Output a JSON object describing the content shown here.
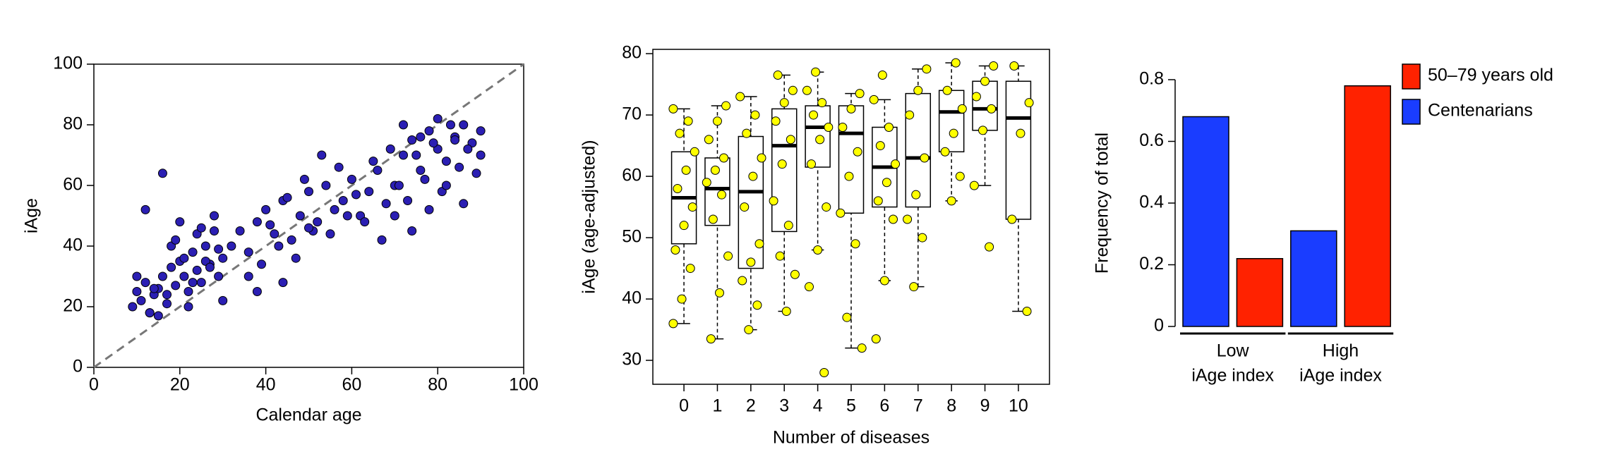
{
  "chart_data": [
    {
      "type": "scatter",
      "xlabel": "Calendar age",
      "ylabel": "iAge",
      "xlim": [
        0,
        100
      ],
      "ylim": [
        0,
        100
      ],
      "xticks": [
        0,
        20,
        40,
        60,
        80,
        100
      ],
      "yticks": [
        0,
        20,
        40,
        60,
        80,
        100
      ],
      "color": "#2b1fb3",
      "reference_line": true,
      "x": [
        9,
        10,
        11,
        12,
        13,
        14,
        15,
        16,
        17,
        18,
        19,
        20,
        21,
        22,
        23,
        24,
        25,
        26,
        27,
        28,
        29,
        30,
        12,
        14,
        16,
        18,
        20,
        22,
        24,
        26,
        28,
        30,
        10,
        13,
        17,
        19,
        21,
        23,
        25,
        27,
        29,
        15,
        32,
        34,
        36,
        38,
        40,
        42,
        44,
        46,
        48,
        50,
        52,
        54,
        56,
        58,
        60,
        62,
        64,
        66,
        68,
        70,
        36,
        39,
        41,
        43,
        45,
        47,
        49,
        51,
        53,
        55,
        57,
        59,
        61,
        63,
        65,
        67,
        69,
        38,
        44,
        50,
        72,
        74,
        76,
        78,
        80,
        82,
        84,
        86,
        88,
        90,
        71,
        73,
        75,
        77,
        79,
        81,
        83,
        85,
        87,
        89,
        70,
        74,
        78,
        82,
        86,
        90,
        72,
        76,
        80,
        84
      ],
      "values": [
        20,
        25,
        22,
        28,
        18,
        24,
        26,
        30,
        21,
        33,
        27,
        35,
        30,
        25,
        38,
        32,
        28,
        40,
        34,
        45,
        30,
        36,
        52,
        26,
        64,
        40,
        48,
        20,
        44,
        35,
        50,
        22,
        30,
        18,
        24,
        42,
        36,
        28,
        46,
        33,
        39,
        17,
        40,
        45,
        38,
        48,
        52,
        44,
        55,
        42,
        50,
        58,
        48,
        60,
        52,
        55,
        62,
        50,
        58,
        65,
        54,
        60,
        30,
        34,
        47,
        40,
        56,
        36,
        62,
        45,
        70,
        44,
        66,
        50,
        57,
        48,
        68,
        42,
        72,
        25,
        28,
        46,
        70,
        75,
        65,
        78,
        72,
        68,
        76,
        80,
        74,
        78,
        60,
        55,
        70,
        62,
        74,
        58,
        80,
        66,
        72,
        64,
        50,
        45,
        52,
        60,
        54,
        70,
        80,
        76,
        82,
        75
      ]
    },
    {
      "type": "box",
      "xlabel": "Number of diseases",
      "ylabel": "iAge (age-adjusted)",
      "ylim": [
        26.1,
        80.7
      ],
      "yticks": [
        30,
        40,
        50,
        60,
        70,
        80
      ],
      "point_color": "#ffff00",
      "categories": [
        0,
        1,
        2,
        3,
        4,
        5,
        6,
        7,
        8,
        9,
        10
      ],
      "boxes": [
        {
          "q1": 49,
          "median": 56.5,
          "q3": 64,
          "whisker_low": 36,
          "whisker_high": 71,
          "points": [
            36,
            40,
            45,
            48,
            52,
            55,
            58,
            61,
            64,
            67,
            69,
            71
          ]
        },
        {
          "q1": 52,
          "median": 58,
          "q3": 63,
          "whisker_low": 33.5,
          "whisker_high": 71.5,
          "points": [
            33.5,
            41,
            47,
            53,
            57,
            59,
            61,
            63,
            66,
            69,
            71.5
          ]
        },
        {
          "q1": 45,
          "median": 57.5,
          "q3": 66.5,
          "whisker_low": 35,
          "whisker_high": 73,
          "points": [
            35,
            39,
            43,
            46,
            49,
            55,
            60,
            63,
            67,
            70,
            73
          ]
        },
        {
          "q1": 51,
          "median": 65,
          "q3": 71,
          "whisker_low": 38,
          "whisker_high": 76.5,
          "points": [
            38,
            44,
            47,
            52,
            56,
            62,
            66,
            69,
            72,
            74,
            76.5
          ]
        },
        {
          "q1": 61.5,
          "median": 68,
          "q3": 71.5,
          "whisker_low": 48,
          "whisker_high": 77,
          "points": [
            28,
            42,
            48,
            55,
            62,
            66,
            68,
            70,
            72,
            74,
            77
          ]
        },
        {
          "q1": 54,
          "median": 67,
          "q3": 71.5,
          "whisker_low": 32,
          "whisker_high": 73.5,
          "points": [
            32,
            37,
            49,
            54,
            60,
            64,
            68,
            71,
            73.5
          ]
        },
        {
          "q1": 55,
          "median": 61.5,
          "q3": 68,
          "whisker_low": 43,
          "whisker_high": 72.5,
          "points": [
            33.5,
            43,
            53,
            56,
            59,
            62,
            65,
            68,
            72.5,
            76.5
          ]
        },
        {
          "q1": 55,
          "median": 63,
          "q3": 73.5,
          "whisker_low": 42,
          "whisker_high": 77.5,
          "points": [
            42,
            50,
            53,
            57,
            63,
            70,
            74,
            77.5
          ]
        },
        {
          "q1": 64,
          "median": 70.5,
          "q3": 74,
          "whisker_low": 56,
          "whisker_high": 78.5,
          "points": [
            56,
            60,
            64,
            67,
            71,
            74,
            78.5
          ]
        },
        {
          "q1": 67.5,
          "median": 71,
          "q3": 75.5,
          "whisker_low": 58.5,
          "whisker_high": 78,
          "points": [
            48.5,
            58.5,
            67.5,
            71,
            73,
            75.5,
            78
          ]
        },
        {
          "q1": 53,
          "median": 69.5,
          "q3": 75.5,
          "whisker_low": 38,
          "whisker_high": 78,
          "points": [
            38,
            53,
            67,
            72,
            78
          ]
        }
      ]
    },
    {
      "type": "bar",
      "ylabel": "Frequency of total",
      "ylim": [
        0,
        0.8
      ],
      "yticks": [
        0,
        0.2,
        0.4,
        0.6,
        0.8
      ],
      "categories": [
        [
          "Low",
          "iAge index"
        ],
        [
          "High",
          "iAge index"
        ]
      ],
      "legend": "top-right",
      "series": [
        {
          "name": "50–79 years old",
          "color": "#ff2200",
          "values": [
            0.22,
            0.78
          ]
        },
        {
          "name": "Centenarians",
          "color": "#1a3dff",
          "values": [
            0.68,
            0.31
          ]
        }
      ]
    }
  ]
}
